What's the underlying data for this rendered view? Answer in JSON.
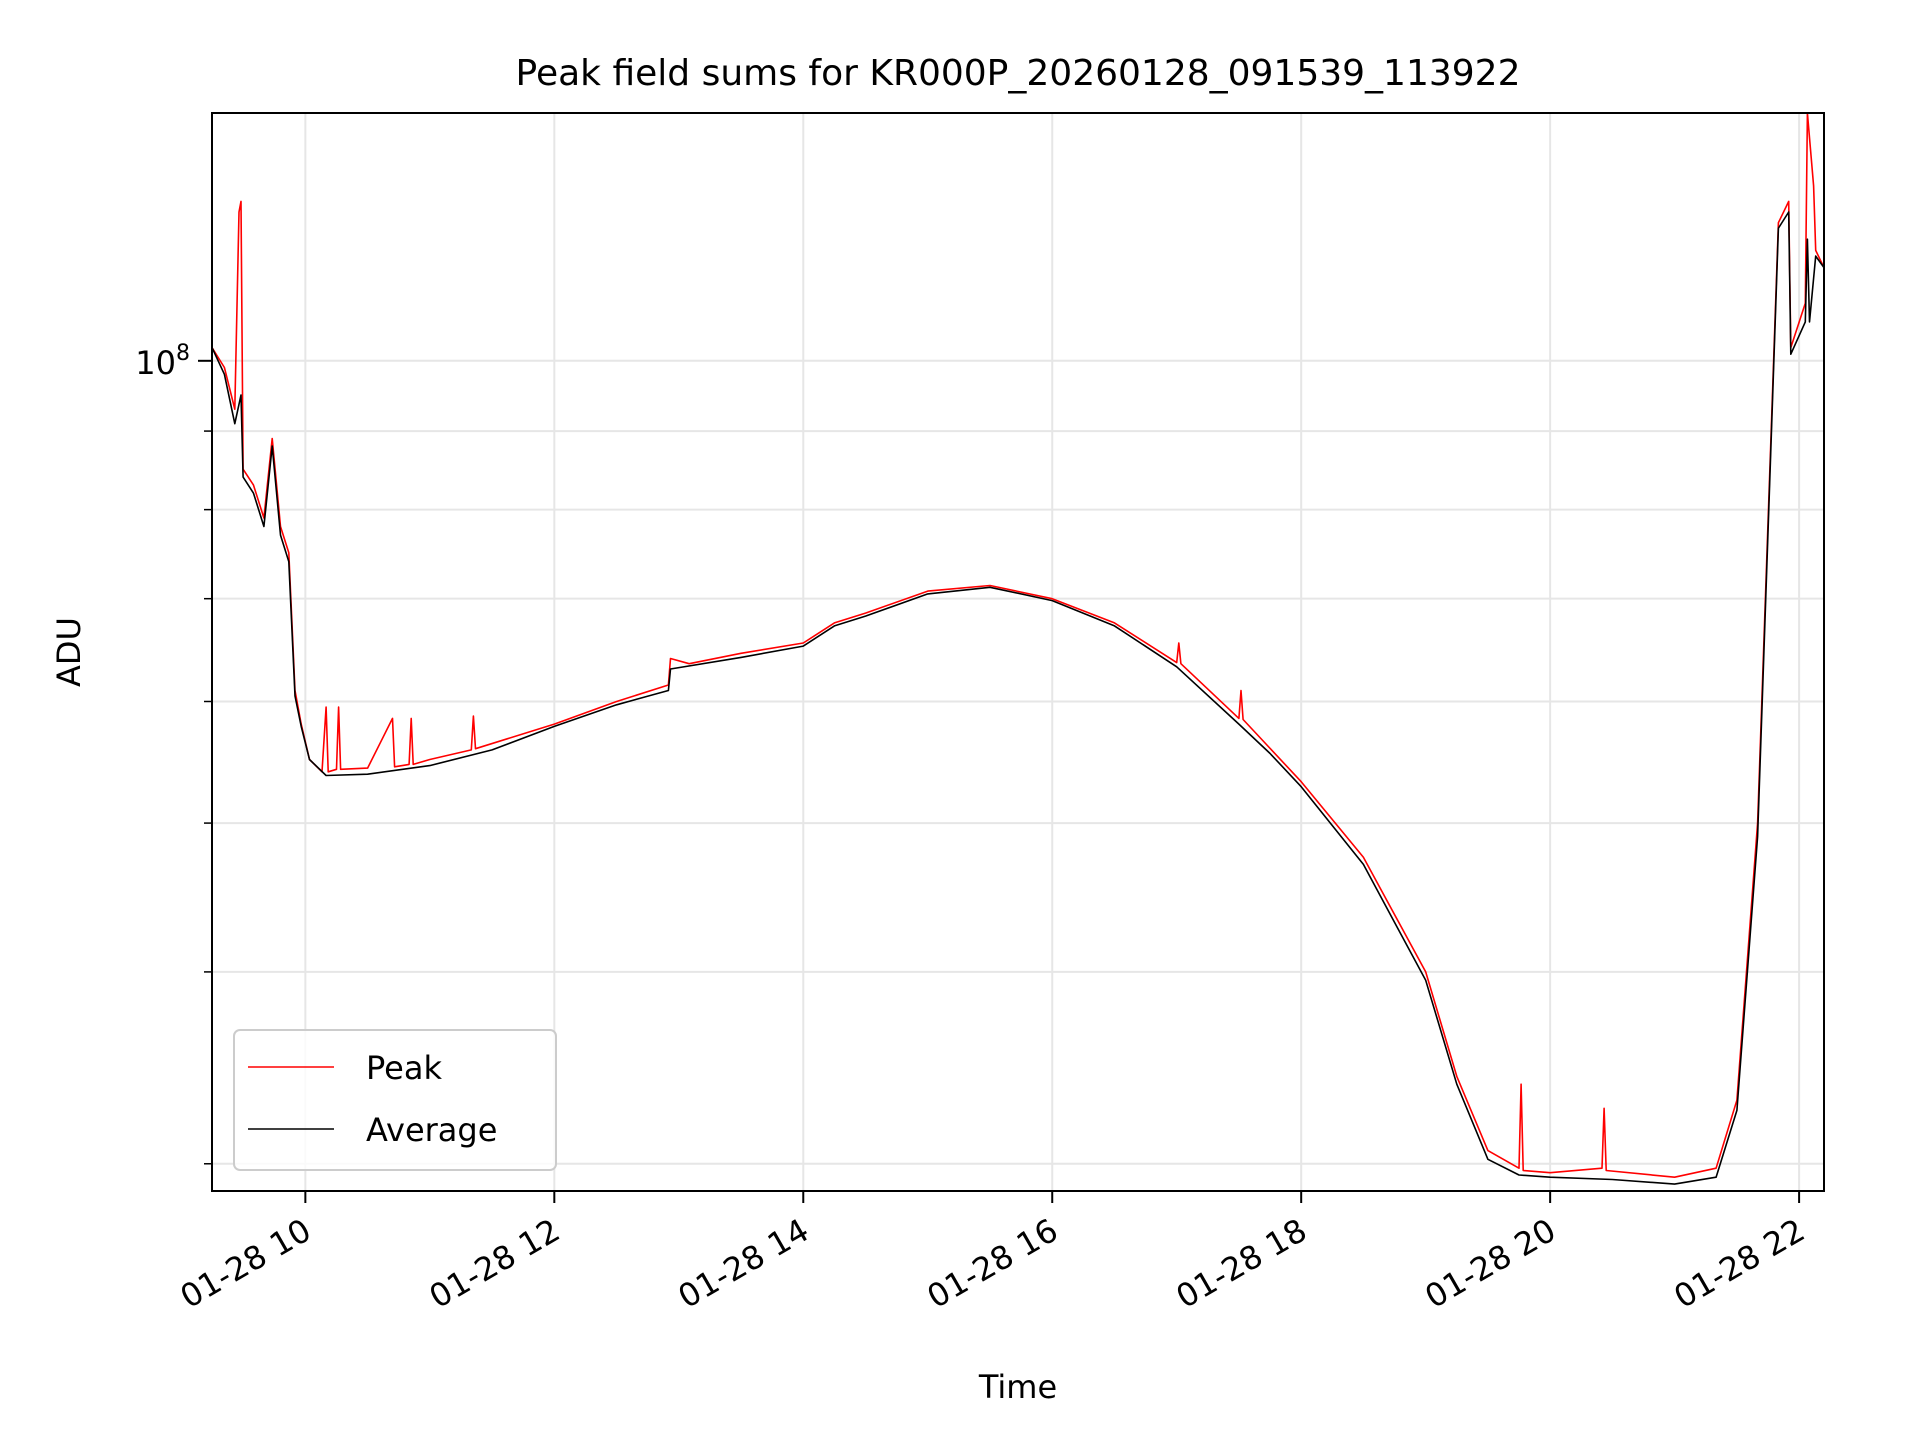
{
  "chart_data": {
    "type": "line",
    "title": "Peak field sums for KR000P_20260128_091539_113922",
    "xlabel": "Time",
    "ylabel": "ADU",
    "y_scale": "log",
    "y_major_tick": {
      "value": 100000000,
      "base": "10",
      "exponent": "8"
    },
    "y_minor_ticks": [
      30000000,
      40000000,
      50000000,
      60000000,
      70000000,
      80000000,
      90000000,
      200000000
    ],
    "xlim": [
      "2026-01-28 09:15",
      "2026-01-28 22:12"
    ],
    "ylim": [
      28800000,
      145000000
    ],
    "x_ticks": [
      {
        "t": "2026-01-28 10:00",
        "label": "01-28 10"
      },
      {
        "t": "2026-01-28 12:00",
        "label": "01-28 12"
      },
      {
        "t": "2026-01-28 14:00",
        "label": "01-28 14"
      },
      {
        "t": "2026-01-28 16:00",
        "label": "01-28 16"
      },
      {
        "t": "2026-01-28 18:00",
        "label": "01-28 18"
      },
      {
        "t": "2026-01-28 20:00",
        "label": "01-28 20"
      },
      {
        "t": "2026-01-28 22:00",
        "label": "01-28 22"
      }
    ],
    "grid": true,
    "legend": "lower-left",
    "series": [
      {
        "name": "Peak",
        "color": "#ff0000",
        "points": [
          [
            "2026-01-28 09:15",
            102000000
          ],
          [
            "2026-01-28 09:21",
            99000000
          ],
          [
            "2026-01-28 09:26",
            93000000
          ],
          [
            "2026-01-28 09:28",
            125000000
          ],
          [
            "2026-01-28 09:29",
            127000000
          ],
          [
            "2026-01-28 09:30",
            85000000
          ],
          [
            "2026-01-28 09:35",
            83000000
          ],
          [
            "2026-01-28 09:40",
            79000000
          ],
          [
            "2026-01-28 09:44",
            89000000
          ],
          [
            "2026-01-28 09:48",
            78000000
          ],
          [
            "2026-01-28 09:52",
            75000000
          ],
          [
            "2026-01-28 09:55",
            61000000
          ],
          [
            "2026-01-28 09:58",
            58000000
          ],
          [
            "2026-01-28 10:02",
            55000000
          ],
          [
            "2026-01-28 10:08",
            54000000
          ],
          [
            "2026-01-28 10:10",
            59500000
          ],
          [
            "2026-01-28 10:11",
            54000000
          ],
          [
            "2026-01-28 10:15",
            54200000
          ],
          [
            "2026-01-28 10:16",
            59500000
          ],
          [
            "2026-01-28 10:17",
            54200000
          ],
          [
            "2026-01-28 10:30",
            54300000
          ],
          [
            "2026-01-28 10:42",
            58500000
          ],
          [
            "2026-01-28 10:43",
            54400000
          ],
          [
            "2026-01-28 10:50",
            54600000
          ],
          [
            "2026-01-28 10:51",
            58500000
          ],
          [
            "2026-01-28 10:52",
            54600000
          ],
          [
            "2026-01-28 11:00",
            55000000
          ],
          [
            "2026-01-28 11:20",
            55800000
          ],
          [
            "2026-01-28 11:21",
            58700000
          ],
          [
            "2026-01-28 11:22",
            55900000
          ],
          [
            "2026-01-28 12:00",
            58000000
          ],
          [
            "2026-01-28 12:30",
            60000000
          ],
          [
            "2026-01-28 12:55",
            61500000
          ],
          [
            "2026-01-28 12:56",
            64000000
          ],
          [
            "2026-01-28 13:05",
            63500000
          ],
          [
            "2026-01-28 13:30",
            64500000
          ],
          [
            "2026-01-28 14:00",
            65500000
          ],
          [
            "2026-01-28 14:15",
            67500000
          ],
          [
            "2026-01-28 14:30",
            68500000
          ],
          [
            "2026-01-28 15:00",
            70800000
          ],
          [
            "2026-01-28 15:30",
            71400000
          ],
          [
            "2026-01-28 16:00",
            70000000
          ],
          [
            "2026-01-28 16:30",
            67500000
          ],
          [
            "2026-01-28 17:00",
            63600000
          ],
          [
            "2026-01-28 17:01",
            65500000
          ],
          [
            "2026-01-28 17:02",
            63500000
          ],
          [
            "2026-01-28 17:30",
            58500000
          ],
          [
            "2026-01-28 17:31",
            61000000
          ],
          [
            "2026-01-28 17:32",
            58400000
          ],
          [
            "2026-01-28 18:00",
            53200000
          ],
          [
            "2026-01-28 18:30",
            47500000
          ],
          [
            "2026-01-28 19:00",
            40000000
          ],
          [
            "2026-01-28 19:15",
            34200000
          ],
          [
            "2026-01-28 19:30",
            30600000
          ],
          [
            "2026-01-28 19:45",
            29800000
          ],
          [
            "2026-01-28 19:46",
            33800000
          ],
          [
            "2026-01-28 19:47",
            29700000
          ],
          [
            "2026-01-28 20:00",
            29600000
          ],
          [
            "2026-01-28 20:25",
            29800000
          ],
          [
            "2026-01-28 20:26",
            32600000
          ],
          [
            "2026-01-28 20:27",
            29700000
          ],
          [
            "2026-01-28 21:00",
            29400000
          ],
          [
            "2026-01-28 21:20",
            29800000
          ],
          [
            "2026-01-28 21:30",
            33000000
          ],
          [
            "2026-01-28 21:40",
            50000000
          ],
          [
            "2026-01-28 21:50",
            123000000
          ],
          [
            "2026-01-28 21:55",
            127000000
          ],
          [
            "2026-01-28 21:56",
            102000000
          ],
          [
            "2026-01-28 22:03",
            109000000
          ],
          [
            "2026-01-28 22:04",
            145000000
          ],
          [
            "2026-01-28 22:07",
            130000000
          ],
          [
            "2026-01-28 22:08",
            118000000
          ],
          [
            "2026-01-28 22:12",
            115000000
          ]
        ]
      },
      {
        "name": "Average",
        "color": "#000000",
        "points": [
          [
            "2026-01-28 09:15",
            102000000
          ],
          [
            "2026-01-28 09:21",
            98000000
          ],
          [
            "2026-01-28 09:26",
            91000000
          ],
          [
            "2026-01-28 09:29",
            95000000
          ],
          [
            "2026-01-28 09:30",
            84000000
          ],
          [
            "2026-01-28 09:35",
            82000000
          ],
          [
            "2026-01-28 09:40",
            78000000
          ],
          [
            "2026-01-28 09:44",
            88000000
          ],
          [
            "2026-01-28 09:48",
            77000000
          ],
          [
            "2026-01-28 09:52",
            74000000
          ],
          [
            "2026-01-28 09:55",
            60500000
          ],
          [
            "2026-01-28 09:58",
            57800000
          ],
          [
            "2026-01-28 10:02",
            55000000
          ],
          [
            "2026-01-28 10:10",
            53700000
          ],
          [
            "2026-01-28 10:30",
            53800000
          ],
          [
            "2026-01-28 11:00",
            54500000
          ],
          [
            "2026-01-28 11:30",
            55800000
          ],
          [
            "2026-01-28 12:00",
            57800000
          ],
          [
            "2026-01-28 12:30",
            59700000
          ],
          [
            "2026-01-28 12:55",
            61000000
          ],
          [
            "2026-01-28 12:56",
            63000000
          ],
          [
            "2026-01-28 13:30",
            64100000
          ],
          [
            "2026-01-28 14:00",
            65200000
          ],
          [
            "2026-01-28 14:15",
            67200000
          ],
          [
            "2026-01-28 14:30",
            68200000
          ],
          [
            "2026-01-28 15:00",
            70500000
          ],
          [
            "2026-01-28 15:30",
            71200000
          ],
          [
            "2026-01-28 16:00",
            69800000
          ],
          [
            "2026-01-28 16:30",
            67200000
          ],
          [
            "2026-01-28 17:00",
            63200000
          ],
          [
            "2026-01-28 17:30",
            58000000
          ],
          [
            "2026-01-28 17:45",
            55500000
          ],
          [
            "2026-01-28 18:00",
            52800000
          ],
          [
            "2026-01-28 18:30",
            47000000
          ],
          [
            "2026-01-28 19:00",
            39500000
          ],
          [
            "2026-01-28 19:15",
            33800000
          ],
          [
            "2026-01-28 19:30",
            30200000
          ],
          [
            "2026-01-28 19:45",
            29500000
          ],
          [
            "2026-01-28 20:00",
            29400000
          ],
          [
            "2026-01-28 20:30",
            29300000
          ],
          [
            "2026-01-28 21:00",
            29100000
          ],
          [
            "2026-01-28 21:20",
            29400000
          ],
          [
            "2026-01-28 21:30",
            32500000
          ],
          [
            "2026-01-28 21:40",
            49000000
          ],
          [
            "2026-01-28 21:50",
            122000000
          ],
          [
            "2026-01-28 21:55",
            125000000
          ],
          [
            "2026-01-28 21:56",
            101000000
          ],
          [
            "2026-01-28 22:03",
            106000000
          ],
          [
            "2026-01-28 22:04",
            120000000
          ],
          [
            "2026-01-28 22:05",
            106000000
          ],
          [
            "2026-01-28 22:08",
            117000000
          ],
          [
            "2026-01-28 22:12",
            115000000
          ]
        ]
      }
    ]
  }
}
